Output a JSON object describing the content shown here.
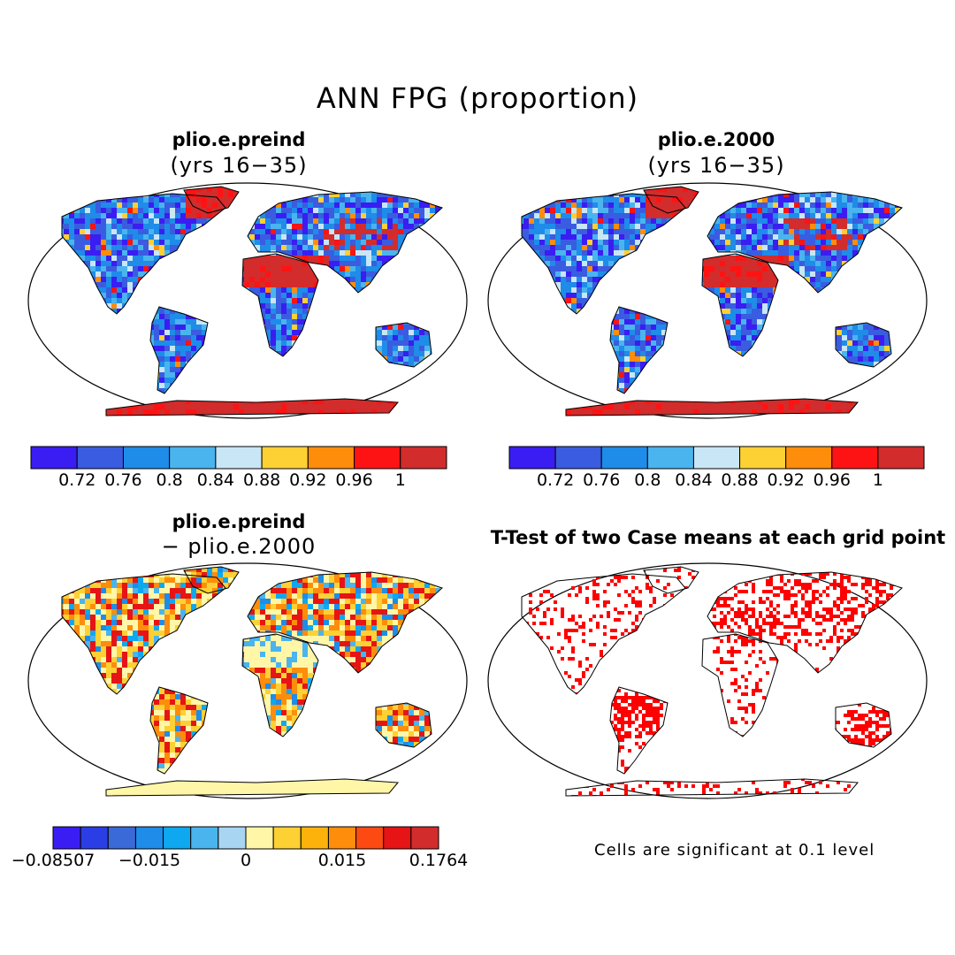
{
  "title": "ANN FPG (proportion)",
  "colors": {
    "ocean": "#ffffff",
    "outline": "#000000",
    "abs_scale": [
      "#3a1df2",
      "#3a5ce0",
      "#1e8ce8",
      "#4ab4ee",
      "#c8e6f6",
      "#fdd034",
      "#fd8d0b",
      "#fd1313",
      "#d22c2c"
    ],
    "diff_scale": [
      "#3a1df2",
      "#2b3ee6",
      "#3a6ad8",
      "#1e8ce8",
      "#0ea8f0",
      "#4ab4ee",
      "#a8d6f2",
      "#fff6a8",
      "#fdd034",
      "#fdb20b",
      "#fd8d0b",
      "#fd4a13",
      "#e61414",
      "#d22c2c"
    ],
    "signif": "#ff0000"
  },
  "panels": [
    {
      "id": "preind",
      "title": "plio.e.preind",
      "subtitle": "(yrs 16−35)",
      "colorbar": {
        "ticks": [
          "0.72",
          "0.76",
          "0.8",
          "0.84",
          "0.88",
          "0.92",
          "0.96",
          "1"
        ]
      }
    },
    {
      "id": "y2000",
      "title": "plio.e.2000",
      "subtitle": "(yrs 16−35)",
      "colorbar": {
        "ticks": [
          "0.72",
          "0.76",
          "0.8",
          "0.84",
          "0.88",
          "0.92",
          "0.96",
          "1"
        ]
      }
    },
    {
      "id": "diff",
      "title": "plio.e.preind",
      "subtitle": "− plio.e.2000",
      "colorbar": {
        "ticks": [
          "−0.08507",
          "−0.015",
          "0",
          "0.015",
          "0.1764"
        ]
      }
    },
    {
      "id": "ttest",
      "title": "T-Test of two Case means at each grid point",
      "note": "Cells are significant at 0.1 level"
    }
  ]
}
